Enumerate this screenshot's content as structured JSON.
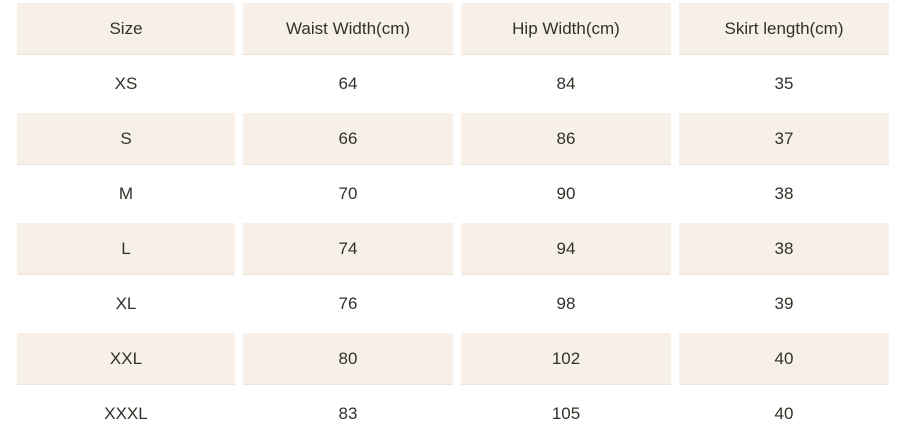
{
  "colors": {
    "page_background": "#ffffff",
    "shaded_row_background": "#f6f0e8",
    "text": "#34302a"
  },
  "chart_data": {
    "type": "table",
    "title": "",
    "columns": [
      "Size",
      "Waist Width(cm)",
      "Hip Width(cm)",
      "Skirt length(cm)"
    ],
    "rows": [
      [
        "XS",
        "64",
        "84",
        "35"
      ],
      [
        "S",
        "66",
        "86",
        "37"
      ],
      [
        "M",
        "70",
        "90",
        "38"
      ],
      [
        "L",
        "74",
        "94",
        "38"
      ],
      [
        "XL",
        "76",
        "98",
        "39"
      ],
      [
        "XXL",
        "80",
        "102",
        "40"
      ],
      [
        "XXXL",
        "83",
        "105",
        "40"
      ]
    ],
    "layout": {
      "shaded_rows": [
        "header",
        "S",
        "L",
        "XXL"
      ],
      "cell_alignment": "center"
    }
  }
}
